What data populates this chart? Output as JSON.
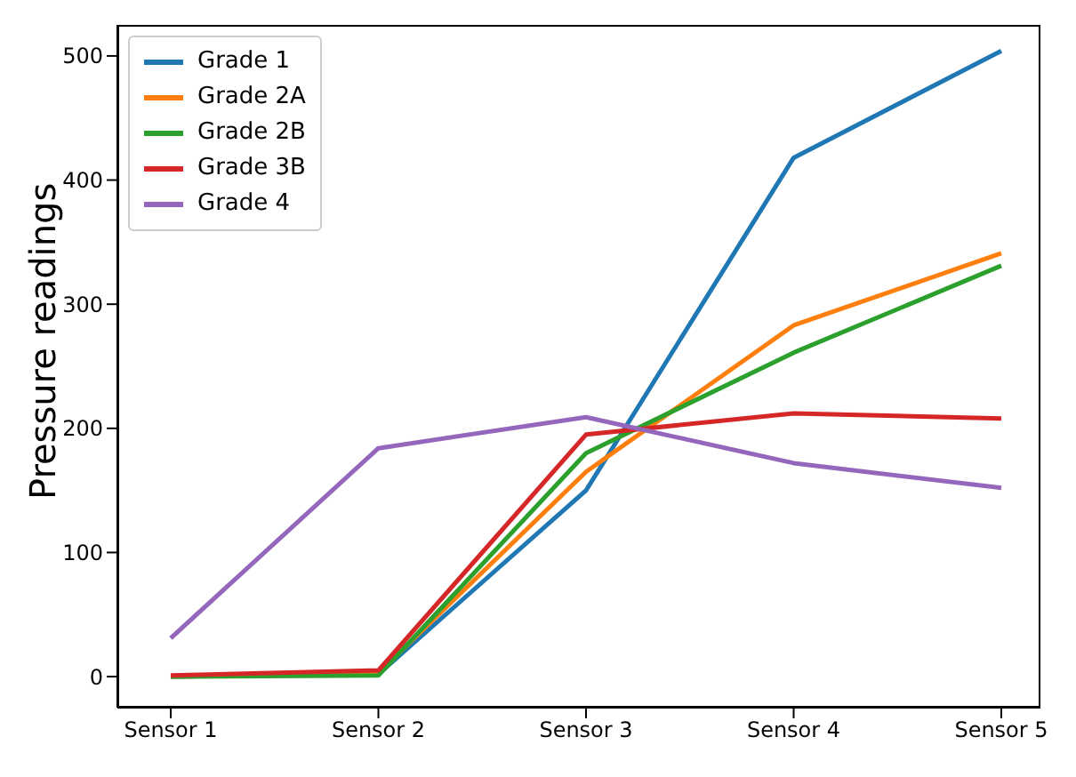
{
  "chart_data": {
    "type": "line",
    "ylabel": "Pressure readings",
    "categories": [
      "Sensor 1",
      "Sensor 2",
      "Sensor 3",
      "Sensor 4",
      "Sensor 5"
    ],
    "series": [
      {
        "name": "Grade 1",
        "color": "#1f77b4",
        "values": [
          0,
          2,
          150,
          418,
          504
        ]
      },
      {
        "name": "Grade 2A",
        "color": "#ff7f0e",
        "values": [
          0,
          3,
          165,
          283,
          341
        ]
      },
      {
        "name": "Grade 2B",
        "color": "#2ca02c",
        "values": [
          0,
          1,
          180,
          261,
          331
        ]
      },
      {
        "name": "Grade 3B",
        "color": "#d62728",
        "values": [
          1,
          5,
          195,
          212,
          208
        ]
      },
      {
        "name": "Grade 4",
        "color": "#9467bd",
        "values": [
          31,
          184,
          209,
          172,
          152
        ]
      }
    ],
    "ylim": [
      -25,
      525
    ],
    "yticks": [
      0,
      100,
      200,
      300,
      400,
      500
    ],
    "grid": false,
    "legend": "top left",
    "marker": "none",
    "line_style": "solid"
  }
}
